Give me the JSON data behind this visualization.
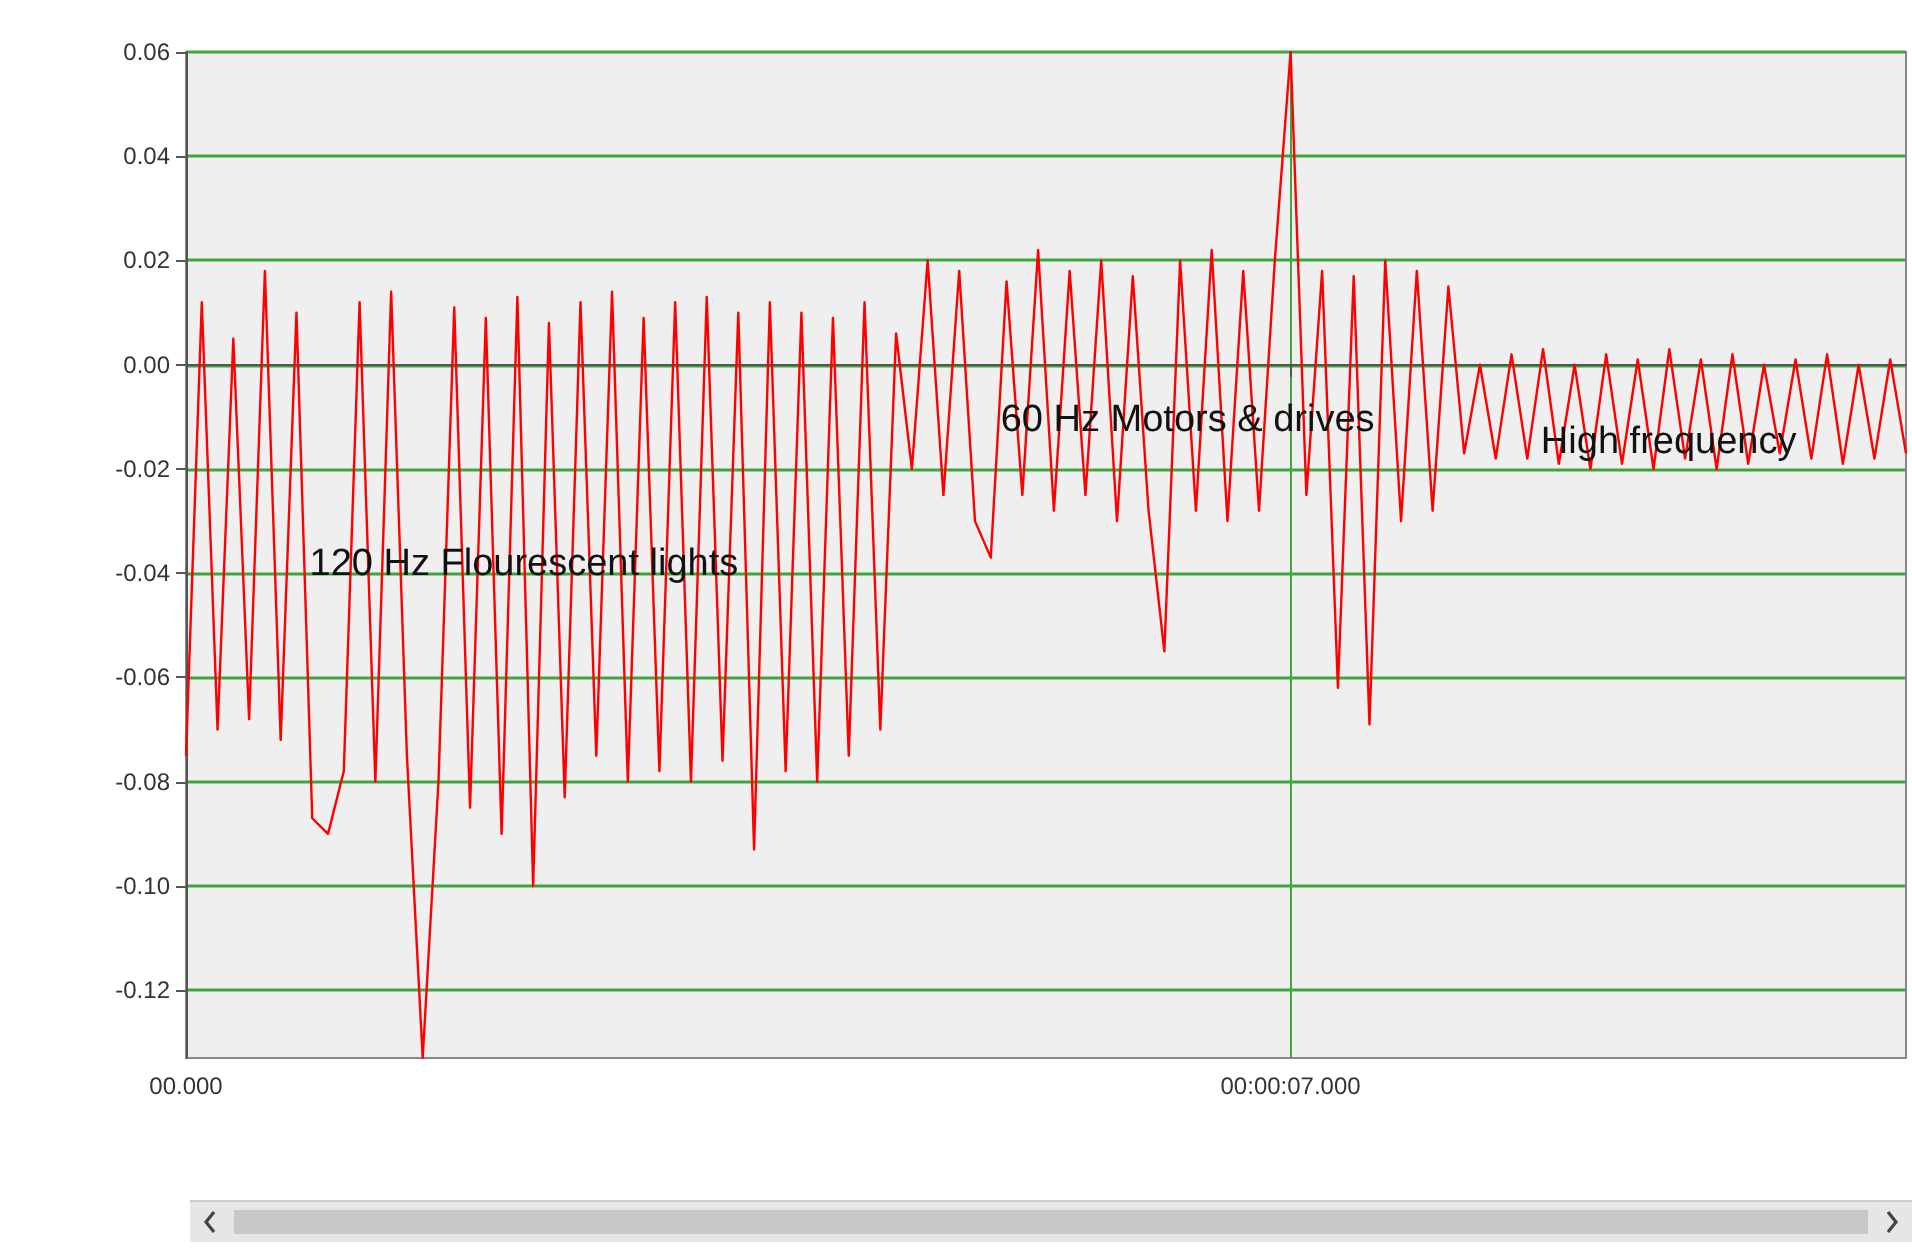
{
  "chart_data": {
    "type": "line",
    "color": "#ff0000",
    "line_style": "solid",
    "marker": "none",
    "grid": true,
    "categories": [
      "00.000",
      null,
      null,
      null,
      null,
      null,
      null,
      null,
      null,
      null,
      null,
      null,
      null,
      null,
      null,
      null,
      null,
      null,
      null,
      null,
      null,
      null,
      null,
      null,
      null,
      null,
      null,
      null,
      null,
      null,
      null,
      null,
      null,
      null,
      null,
      null,
      null,
      null,
      null,
      null,
      null,
      null,
      null,
      null,
      null,
      null,
      null,
      null,
      null,
      null,
      null,
      null,
      null,
      null,
      null,
      null,
      null,
      null,
      null,
      null,
      null,
      null,
      null,
      null,
      null,
      null,
      null,
      null,
      null,
      null,
      "00:00:07.000",
      null,
      null,
      null,
      null,
      null,
      null,
      null,
      null,
      null,
      null,
      null,
      null,
      null,
      null,
      null,
      null,
      null,
      null,
      null,
      null,
      null,
      null,
      null,
      null,
      null,
      null,
      null,
      null,
      null,
      null,
      null,
      null,
      null,
      null,
      null,
      null,
      null,
      null,
      null
    ],
    "values": [
      -0.075,
      0.012,
      -0.07,
      0.005,
      -0.068,
      0.018,
      -0.072,
      0.01,
      -0.087,
      -0.09,
      -0.078,
      0.012,
      -0.08,
      0.014,
      -0.075,
      -0.133,
      -0.08,
      0.011,
      -0.085,
      0.009,
      -0.09,
      0.013,
      -0.1,
      0.008,
      -0.083,
      0.012,
      -0.075,
      0.014,
      -0.08,
      0.009,
      -0.078,
      0.012,
      -0.08,
      0.013,
      -0.076,
      0.01,
      -0.093,
      0.012,
      -0.078,
      0.01,
      -0.08,
      0.009,
      -0.075,
      0.012,
      -0.07,
      0.006,
      -0.02,
      0.02,
      -0.025,
      0.018,
      -0.03,
      -0.037,
      0.016,
      -0.025,
      0.022,
      -0.028,
      0.018,
      -0.025,
      0.02,
      -0.03,
      0.017,
      -0.028,
      -0.055,
      0.02,
      -0.028,
      0.022,
      -0.03,
      0.018,
      -0.028,
      0.02,
      0.06,
      -0.025,
      0.018,
      -0.062,
      0.017,
      -0.069,
      0.02,
      -0.03,
      0.018,
      -0.028,
      0.015,
      -0.017,
      0,
      -0.018,
      0.002,
      -0.018,
      0.003,
      -0.019,
      0,
      -0.02,
      0.002,
      -0.019,
      0.001,
      -0.02,
      0.003,
      -0.018,
      0.001,
      -0.02,
      0.002,
      -0.019,
      0,
      -0.017,
      0.001,
      -0.018,
      0.002,
      -0.019,
      0,
      -0.018,
      0.001,
      -0.017
    ],
    "ylim": [
      -0.133,
      0.06
    ],
    "yticks": [
      {
        "value": -0.12,
        "label": "-0.12"
      },
      {
        "value": -0.1,
        "label": "-0.10"
      },
      -0.08,
      -0.06,
      -0.04,
      -0.02,
      {
        "value": 0,
        "label": "0.00"
      },
      0.02,
      0.04,
      0.06
    ],
    "annotations": [
      "120 Hz Flourescent lights",
      "60 Hz Motors & drives",
      "High frequency"
    ]
  }
}
